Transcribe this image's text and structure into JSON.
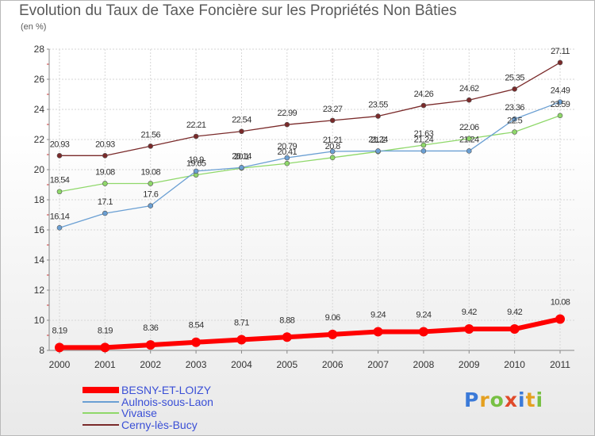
{
  "title": "Evolution du Taux de Taxe Foncière sur les Propriétés Non Bâties",
  "unit": "(en %)",
  "brand": {
    "letters": [
      "P",
      "r",
      "o",
      "x",
      "i",
      "t",
      "i"
    ],
    "colors": [
      "#3b7ad8",
      "#e4a020",
      "#77c043",
      "#e04a2a",
      "#3b7ad8",
      "#e4a020",
      "#77c043"
    ]
  },
  "chart_data": {
    "type": "line",
    "x": [
      "2000",
      "2001",
      "2002",
      "2003",
      "2004",
      "2005",
      "2006",
      "2007",
      "2008",
      "2009",
      "2010",
      "2011"
    ],
    "ylim": [
      8,
      28
    ],
    "yticks": [
      "8",
      "10",
      "12",
      "14",
      "16",
      "18",
      "20",
      "22",
      "24",
      "26",
      "28"
    ],
    "grid": true,
    "legend": "bottom-left",
    "series": [
      {
        "name": "BESNY-ET-LOIZY",
        "color": "#ff0000",
        "values": [
          8.19,
          8.19,
          8.36,
          8.54,
          8.71,
          8.88,
          9.06,
          9.24,
          9.24,
          9.42,
          9.42,
          10.08
        ],
        "labels": [
          "8.19",
          "8.19",
          "8.36",
          "8.54",
          "8.71",
          "8.88",
          "9.06",
          "9.24",
          "9.24",
          "9.42",
          "9.42",
          "10.08"
        ]
      },
      {
        "name": "Aulnois-sous-Laon",
        "color": "#6a9fd3",
        "values": [
          16.14,
          17.1,
          17.6,
          19.9,
          20.14,
          20.79,
          21.21,
          21.24,
          21.24,
          21.24,
          23.36,
          24.49
        ],
        "labels": [
          "16.14",
          "17.1",
          "17.6",
          "19.9",
          "20.14",
          "20.79",
          "21.21",
          "21.24",
          "21.24",
          "21.24",
          "23.36",
          "24.49"
        ]
      },
      {
        "name": "Vivaise",
        "color": "#8fd86a",
        "values": [
          18.54,
          19.08,
          19.08,
          19.65,
          20.1,
          20.41,
          20.8,
          21.2,
          21.63,
          22.06,
          22.5,
          23.59
        ],
        "labels": [
          "18.54",
          "19.08",
          "19.08",
          "19.65",
          "20.1",
          "20.41",
          "20.8",
          "21.2",
          "21.63",
          "22.06",
          "22.5",
          "23.59"
        ]
      },
      {
        "name": "Cerny-lès-Bucy",
        "color": "#7a2a2a",
        "values": [
          20.93,
          20.93,
          21.56,
          22.21,
          22.54,
          22.99,
          23.27,
          23.55,
          24.26,
          24.62,
          25.35,
          27.11
        ],
        "labels": [
          "20.93",
          "20.93",
          "21.56",
          "22.21",
          "22.54",
          "22.99",
          "23.27",
          "23.55",
          "24.26",
          "24.62",
          "25.35",
          "27.11"
        ]
      }
    ]
  }
}
